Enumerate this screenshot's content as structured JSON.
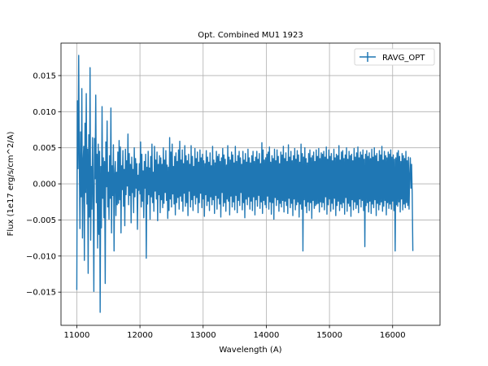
{
  "chart_data": {
    "type": "line",
    "title": "Opt. Combined MU1 1923",
    "xlabel": "Wavelength (A)",
    "ylabel": "Flux (1e17 erg/s/cm^2/A)",
    "xlim": [
      10750,
      16750
    ],
    "ylim": [
      -0.0196,
      0.0195
    ],
    "xticks": [
      11000,
      12000,
      13000,
      14000,
      15000,
      16000
    ],
    "xtick_labels": [
      "11000",
      "12000",
      "13000",
      "14000",
      "15000",
      "16000"
    ],
    "yticks": [
      -0.015,
      -0.01,
      -0.005,
      0.0,
      0.005,
      0.01,
      0.015
    ],
    "ytick_labels": [
      "−0.015",
      "−0.010",
      "−0.005",
      "0.000",
      "0.005",
      "0.010",
      "0.015"
    ],
    "grid": true,
    "legend_position": "top-right",
    "colors": {
      "series": "#1f77b4",
      "fit": "#2ca02c",
      "grid": "#b0b0b0"
    },
    "series": [
      {
        "name": "RAVG_OPT",
        "x_start": 11000,
        "x_step": 10,
        "values": [
          -0.0147,
          0.0115,
          0.0021,
          0.0178,
          0.0034,
          -0.0062,
          0.0072,
          -0.0018,
          0.0132,
          -0.0075,
          0.0029,
          0.0052,
          -0.0106,
          0.0084,
          -0.0012,
          0.0125,
          -0.0028,
          0.0048,
          -0.0124,
          0.0068,
          -0.0046,
          0.0161,
          -0.0078,
          0.0024,
          -0.0035,
          0.0064,
          -0.0012,
          -0.0149,
          0.0063,
          0.0007,
          0.0123,
          -0.0026,
          0.0041,
          -0.0089,
          0.0055,
          -0.007,
          0.0045,
          -0.0178,
          0.0024,
          -0.0061,
          0.0107,
          -0.002,
          0.0036,
          -0.0047,
          0.0031,
          -0.0138,
          0.0058,
          -0.0004,
          0.0087,
          -0.0032,
          0.0016,
          -0.0049,
          0.0039,
          -0.002,
          0.0105,
          -0.0068,
          0.0025,
          -0.0016,
          0.0054,
          -0.0093,
          0.0013,
          0.0031,
          -0.0044,
          0.0016,
          -0.0029,
          0.0044,
          -0.0027,
          0.006,
          -0.0022,
          0.0051,
          -0.0068,
          0.0025,
          -0.0008,
          0.0046,
          -0.0031,
          0.002,
          -0.0058,
          0.0048,
          -0.0015,
          0.0032,
          -0.0003,
          0.0069,
          -0.0029,
          0.0042,
          -0.0016,
          0.0027,
          -0.0054,
          0.0037,
          -0.0012,
          0.002,
          -0.004,
          0.005,
          -0.0018,
          0.0035,
          -0.0006,
          0.0028,
          -0.0063,
          0.0012,
          -0.0009,
          0.0028,
          -0.0014,
          0.0058,
          -0.0032,
          0.0041,
          -0.0024,
          0.0018,
          -0.0047,
          0.0031,
          -0.0006,
          0.0041,
          -0.0103,
          0.0023,
          -0.0028,
          0.0045,
          -0.0015,
          0.0022,
          -0.0049,
          0.0038,
          -0.0018,
          0.0055,
          -0.0026,
          0.0016,
          -0.0038,
          0.0052,
          -0.001,
          0.0033,
          -0.0021,
          0.0044,
          -0.0051,
          0.0027,
          -0.0015,
          0.0039,
          -0.004,
          0.0036,
          -0.0022,
          0.0027,
          -0.0033,
          0.005,
          -0.0027,
          0.0033,
          -0.0012,
          0.0046,
          -0.0023,
          0.0026,
          -0.0048,
          0.0023,
          -0.0037,
          0.0064,
          -0.0021,
          0.0044,
          -0.0032,
          0.0055,
          -0.0014,
          0.0024,
          -0.0028,
          0.0038,
          -0.0043,
          0.0043,
          -0.0026,
          0.0031,
          -0.0019,
          0.0047,
          -0.0035,
          0.0059,
          -0.0017,
          0.0033,
          -0.0024,
          0.0047,
          -0.0038,
          0.0028,
          -0.0013,
          0.0053,
          -0.0031,
          0.0039,
          -0.0026,
          0.0032,
          -0.0044,
          0.0041,
          -0.001,
          0.0027,
          -0.0032,
          0.0053,
          -0.0022,
          0.0038,
          -0.0037,
          0.0024,
          -0.0016,
          0.0049,
          -0.0028,
          0.0035,
          -0.0019,
          0.0044,
          -0.004,
          0.003,
          -0.0026,
          0.0047,
          -0.0013,
          0.0036,
          -0.0033,
          0.0041,
          -0.0021,
          0.0032,
          -0.0045,
          0.0028,
          -0.0015,
          0.0046,
          -0.003,
          0.0037,
          -0.0024,
          0.003,
          -0.0037,
          0.0043,
          -0.0018,
          0.0025,
          -0.0029,
          0.0052,
          -0.0022,
          0.0033,
          -0.0041,
          0.0029,
          -0.0016,
          0.0045,
          -0.0035,
          0.0038,
          -0.002,
          0.0041,
          -0.0028,
          0.0031,
          -0.0046,
          0.0036,
          -0.0012,
          0.0049,
          -0.0031,
          0.004,
          -0.0026,
          0.0034,
          -0.0038,
          0.0026,
          -0.0021,
          0.0053,
          -0.0024,
          0.0037,
          -0.0043,
          0.0033,
          -0.0017,
          0.0044,
          -0.0032,
          0.004,
          -0.0025,
          0.0029,
          -0.0036,
          0.0052,
          -0.0016,
          0.0031,
          -0.004,
          0.0039,
          -0.0023,
          0.0045,
          -0.003,
          0.0036,
          -0.0012,
          0.0027,
          -0.0036,
          0.0045,
          -0.0026,
          0.0033,
          -0.0047,
          0.0042,
          -0.0021,
          0.003,
          -0.0029,
          0.0048,
          -0.0018,
          0.0036,
          -0.0035,
          0.0029,
          -0.0024,
          0.0039,
          -0.0037,
          0.0045,
          -0.0018,
          0.0031,
          -0.0043,
          0.0037,
          -0.0022,
          0.0045,
          -0.0031,
          0.0034,
          -0.0016,
          0.0042,
          -0.0034,
          0.0028,
          -0.0025,
          0.0057,
          -0.0041,
          0.0047,
          -0.0023,
          0.0033,
          -0.0029,
          0.0036,
          -0.0033,
          0.0041,
          -0.0017,
          0.0044,
          -0.0035,
          0.0051,
          -0.0025,
          0.003,
          -0.0042,
          0.0039,
          -0.0026,
          0.0035,
          -0.0049,
          0.0048,
          -0.0019,
          0.0032,
          -0.003,
          0.0047,
          -0.0022,
          0.0038,
          -0.0038,
          0.0028,
          -0.0027,
          0.0044,
          -0.0032,
          0.004,
          -0.0023,
          0.0052,
          -0.0039,
          0.0035,
          -0.0024,
          0.0043,
          -0.003,
          0.0031,
          -0.0041,
          0.0054,
          -0.002,
          0.0037,
          -0.0033,
          0.0045,
          -0.0027,
          0.0032,
          -0.0044,
          0.0039,
          -0.0021,
          0.0049,
          -0.0036,
          0.0034,
          -0.0029,
          0.0046,
          -0.0025,
          0.004,
          -0.0046,
          0.003,
          -0.0028,
          0.0055,
          -0.0035,
          0.0042,
          -0.0093,
          0.0037,
          -0.0022,
          0.005,
          -0.0031,
          0.0035,
          -0.004,
          0.0029,
          -0.0025,
          0.0042,
          -0.0037,
          0.0047,
          -0.0026,
          0.0036,
          -0.0048,
          0.0039,
          -0.0023,
          0.0044,
          -0.0034,
          0.0031,
          -0.003,
          0.0047,
          -0.0028,
          0.0038,
          -0.0027,
          0.0049,
          -0.0039,
          0.0035,
          -0.0025,
          0.0043,
          -0.0032,
          0.0041,
          -0.0026,
          0.0045,
          -0.0036,
          0.0037,
          -0.0018,
          0.0051,
          -0.0042,
          0.0034,
          -0.0029,
          0.0047,
          -0.0021,
          0.0038,
          -0.0038,
          0.0042,
          -0.0027,
          0.0032,
          -0.0035,
          0.0048,
          -0.002,
          0.0036,
          -0.0044,
          0.0041,
          -0.003,
          0.0039,
          -0.0024,
          0.0053,
          -0.0037,
          0.0033,
          -0.0028,
          0.0044,
          -0.0033,
          0.0046,
          -0.0026,
          0.0035,
          -0.0042,
          0.004,
          -0.0019,
          0.005,
          -0.0038,
          0.0034,
          -0.0027,
          0.0045,
          -0.0031,
          0.0039,
          -0.0045,
          0.0041,
          -0.0022,
          0.0032,
          -0.0036,
          0.0049,
          -0.0025,
          0.0037,
          -0.0034,
          0.0043,
          -0.0029,
          0.0051,
          -0.004,
          0.0036,
          -0.0021,
          0.0044,
          -0.0032,
          0.004,
          -0.0023,
          0.0047,
          -0.0037,
          0.0034,
          -0.0087,
          0.0041,
          -0.003,
          0.0046,
          -0.0026,
          0.0038,
          -0.0039,
          0.0043,
          -0.0024,
          0.0035,
          -0.0041,
          0.0048,
          -0.0028,
          0.0037,
          -0.0033,
          0.005,
          -0.0022,
          0.0039,
          -0.0044,
          0.0042,
          -0.0027,
          0.0031,
          -0.0036,
          0.0046,
          -0.0029,
          0.004,
          -0.0025,
          0.0052,
          -0.0038,
          0.0033,
          -0.0031,
          0.0045,
          -0.0023,
          0.0039,
          -0.0043,
          0.0036,
          -0.0026,
          0.0044,
          -0.0034,
          0.0041,
          -0.0028,
          0.0047,
          -0.0035,
          0.0037,
          -0.0024,
          0.004,
          -0.0037,
          0.0034,
          -0.0093,
          0.0036,
          -0.0029,
          0.0043,
          -0.0031,
          0.0046,
          -0.0025,
          0.0038,
          -0.0039,
          0.0031,
          -0.0021,
          0.0042,
          -0.0036,
          0.0039,
          -0.0028,
          0.0035,
          -0.0033,
          0.0045,
          -0.0026,
          0.0032,
          -0.003,
          0.0037,
          -0.0035,
          0.0012,
          0.0036,
          -0.0006,
          0.0027,
          -0.0015,
          -0.0093
        ]
      }
    ]
  }
}
